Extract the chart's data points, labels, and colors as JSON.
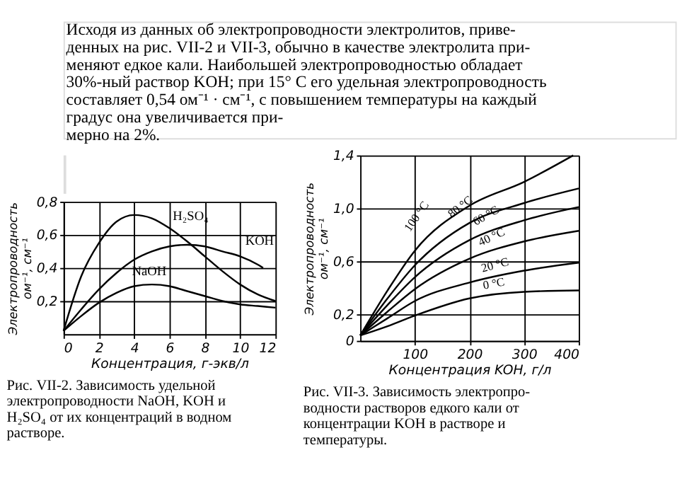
{
  "chart_data": [
    {
      "type": "line",
      "title": "Рис. VII-2. Зависимость удельной\nэлектропроводности NaOH, KOH и\nH₂SO₄ от их концентраций в водном\nрастворе.",
      "annotations": [
        "Исходя из данных об электропроводности электролитов, приве-\nденных на рис. VII-2 и VII-3, обычно в качестве электролита при-\nменяют едкое кали. Наибольшей электропроводностью обладает\n30%-ный раствор KOH; при 15° С его удельная электропроводность\nсоставляет 0,54 ом⁻¹ · см⁻¹, с повышением температуры на каждый\nградус она увеличивается при-\nмерно на 2%."
      ],
      "xlabel": "Концентрация, г-экв/л",
      "ylabel": "Электропроводность\nом⁻¹, см⁻¹",
      "x": [
        0,
        1,
        2,
        3,
        4,
        5,
        6,
        7,
        8,
        9,
        10,
        11,
        12
      ],
      "series": [
        {
          "name": "H₂SO₄",
          "color": "#000000",
          "values": [
            0.02,
            0.35,
            0.55,
            0.68,
            0.72,
            0.7,
            0.64,
            0.56,
            0.47,
            0.38,
            0.3,
            0.24,
            0.2
          ]
        },
        {
          "name": "KOH",
          "color": "#000000",
          "x": [
            0,
            1,
            2,
            3,
            4,
            5,
            6,
            7,
            8,
            9,
            10,
            11,
            11.3
          ],
          "values": [
            0.02,
            0.15,
            0.27,
            0.37,
            0.45,
            0.5,
            0.53,
            0.54,
            0.53,
            0.5,
            0.47,
            0.42,
            0.4
          ]
        },
        {
          "name": "NaOH",
          "color": "#000000",
          "values": [
            0.02,
            0.11,
            0.19,
            0.25,
            0.29,
            0.3,
            0.29,
            0.26,
            0.23,
            0.2,
            0.18,
            0.17,
            0.16
          ]
        }
      ],
      "xlim": [
        0,
        12
      ],
      "xticks": [
        0,
        2,
        4,
        6,
        8,
        10,
        12
      ],
      "ylim": [
        0,
        0.8
      ],
      "yticks": [
        {
          "value": 0.2,
          "label": "0,2"
        },
        {
          "value": 0.4,
          "label": "0,4"
        },
        {
          "value": 0.6,
          "label": "0,6"
        },
        {
          "value": 0.8,
          "label": "0,8"
        }
      ],
      "grid": true,
      "legend": false,
      "marker": "none",
      "line_style": "solid"
    },
    {
      "type": "line",
      "title": "Рис. VII-3. Зависимость электропро-\nводности растворов едкого кали от\nконцентрации KOH в растворе и\nтемпературы.",
      "xlabel": "Концентрация KOH, г/л",
      "ylabel": "Электропроводность\nом⁻¹, см⁻¹",
      "x": [
        0,
        50,
        100,
        200,
        300,
        400
      ],
      "series": [
        {
          "name": "100 °C",
          "color": "#000000",
          "x": [
            0,
            50,
            100,
            200,
            300,
            390
          ],
          "values": [
            0.04,
            0.38,
            0.68,
            1.02,
            1.2,
            1.4
          ]
        },
        {
          "name": "80 °C",
          "color": "#000000",
          "values": [
            0.04,
            0.32,
            0.57,
            0.89,
            1.04,
            1.15
          ]
        },
        {
          "name": "60 °C",
          "color": "#000000",
          "values": [
            0.04,
            0.27,
            0.48,
            0.76,
            0.91,
            1.01
          ]
        },
        {
          "name": "40 °C",
          "color": "#000000",
          "values": [
            0.04,
            0.22,
            0.39,
            0.62,
            0.75,
            0.83
          ]
        },
        {
          "name": "20 °C",
          "color": "#000000",
          "values": [
            0.04,
            0.17,
            0.3,
            0.44,
            0.53,
            0.59
          ]
        },
        {
          "name": "0 °C",
          "color": "#000000",
          "values": [
            0.04,
            0.11,
            0.19,
            0.32,
            0.37,
            0.38
          ]
        }
      ],
      "xlim": [
        0,
        400
      ],
      "xticks": [
        100,
        200,
        300,
        400
      ],
      "ylim": [
        0,
        1.4
      ],
      "yticks": [
        0,
        {
          "value": 0.2,
          "label": "0,2"
        },
        {
          "value": 0.6,
          "label": "0,6"
        },
        {
          "value": 1.0,
          "label": "1,0"
        },
        {
          "value": 1.4,
          "label": "1,4"
        }
      ],
      "grid": true,
      "legend": false,
      "marker": "none",
      "line_style": "solid"
    }
  ]
}
